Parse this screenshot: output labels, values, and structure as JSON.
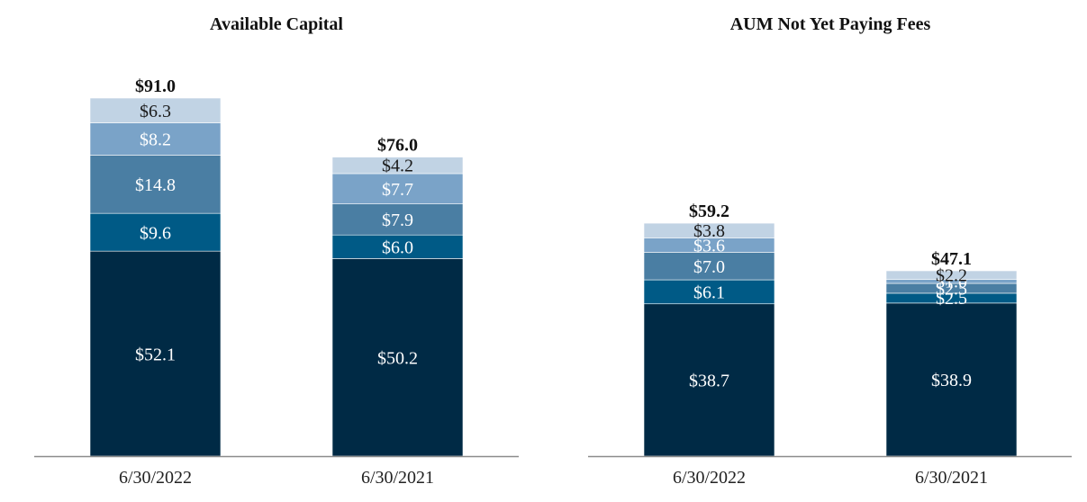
{
  "chart_data": [
    {
      "type": "bar",
      "stacked": true,
      "title": "Available Capital",
      "categories": [
        "6/30/2022",
        "6/30/2021"
      ],
      "totals": [
        "$91.0",
        "$76.0"
      ],
      "series": [
        {
          "name": "segment-1",
          "color": "#002a45",
          "values": [
            52.1,
            50.2
          ],
          "labels": [
            "$52.1",
            "$50.2"
          ]
        },
        {
          "name": "segment-2",
          "color": "#005a86",
          "values": [
            9.6,
            6.0
          ],
          "labels": [
            "$9.6",
            "$6.0"
          ]
        },
        {
          "name": "segment-3",
          "color": "#4a7ea3",
          "values": [
            14.8,
            7.9
          ],
          "labels": [
            "$14.8",
            "$7.9"
          ]
        },
        {
          "name": "segment-4",
          "color": "#7aa3c8",
          "values": [
            8.2,
            7.7
          ],
          "labels": [
            "$8.2",
            "$7.7"
          ]
        },
        {
          "name": "segment-5",
          "color": "#c1d3e4",
          "values": [
            6.3,
            4.2
          ],
          "labels": [
            "$6.3",
            "$4.2"
          ]
        }
      ],
      "ylim": [
        0,
        91
      ]
    },
    {
      "type": "bar",
      "stacked": true,
      "title": "AUM Not Yet Paying Fees",
      "categories": [
        "6/30/2022",
        "6/30/2021"
      ],
      "totals": [
        "$59.2",
        "$47.1"
      ],
      "series": [
        {
          "name": "segment-1",
          "color": "#002a45",
          "values": [
            38.7,
            38.9
          ],
          "labels": [
            "$38.7",
            "$38.9"
          ]
        },
        {
          "name": "segment-2",
          "color": "#005a86",
          "values": [
            6.1,
            2.5
          ],
          "labels": [
            "$6.1",
            "$2.5"
          ]
        },
        {
          "name": "segment-3",
          "color": "#4a7ea3",
          "values": [
            7.0,
            2.5
          ],
          "labels": [
            "$7.0",
            "$2.5"
          ]
        },
        {
          "name": "segment-4",
          "color": "#7aa3c8",
          "values": [
            3.6,
            1.0
          ],
          "labels": [
            "$3.6",
            "$1.0"
          ]
        },
        {
          "name": "segment-5",
          "color": "#c1d3e4",
          "values": [
            3.8,
            2.2
          ],
          "labels": [
            "$3.8",
            "$2.2"
          ]
        }
      ],
      "ylim": [
        0,
        91
      ]
    }
  ]
}
